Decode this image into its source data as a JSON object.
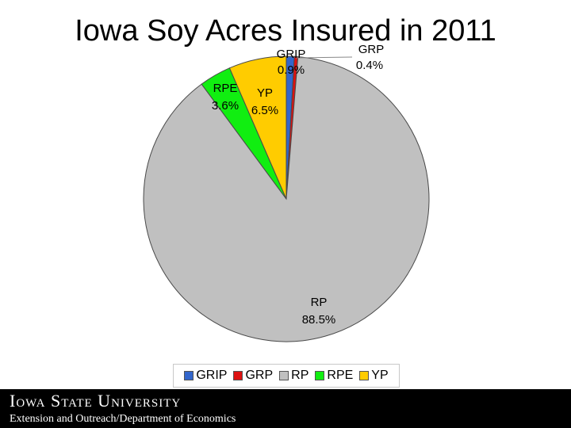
{
  "slide": {
    "title": "Iowa Soy Acres Insured in 2011"
  },
  "chart_data": {
    "type": "pie",
    "title": "",
    "categories": [
      "GRIP",
      "GRP",
      "RP",
      "RPE",
      "YP"
    ],
    "values": [
      0.9,
      0.4,
      88.5,
      3.6,
      6.5
    ],
    "labels": [
      "0.9%",
      "0.4%",
      "88.5%",
      "3.6%",
      "6.5%"
    ],
    "colors": [
      "#3366cc",
      "#dd1111",
      "#c0c0c0",
      "#11ee11",
      "#ffcc00"
    ],
    "legend_position": "bottom"
  },
  "footer": {
    "logo_text": "Iowa State University",
    "subtitle": "Extension and Outreach/Department of Economics"
  }
}
